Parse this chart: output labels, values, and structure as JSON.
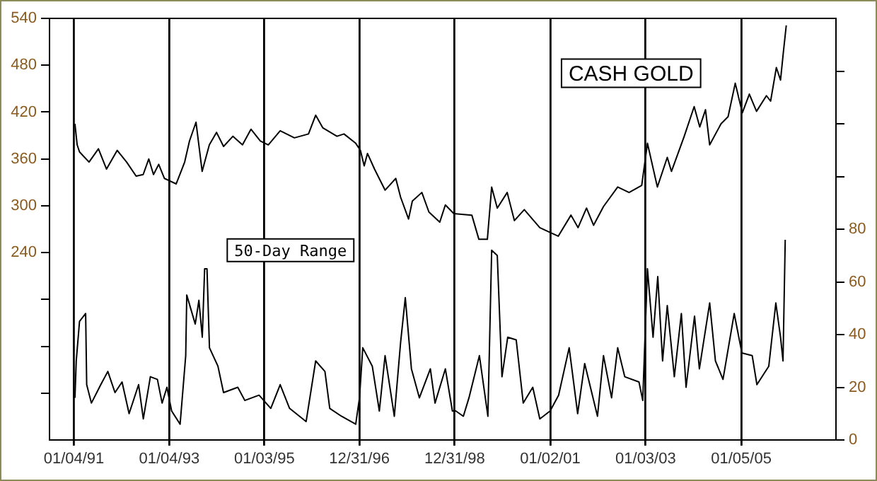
{
  "chart_data": {
    "type": "line",
    "xlim": [
      "1990-07-01",
      "2007-01-01"
    ],
    "xticks": [
      {
        "value": "1991-01-04",
        "label": "01/04/91"
      },
      {
        "value": "1993-01-04",
        "label": "01/04/93"
      },
      {
        "value": "1995-01-03",
        "label": "01/03/95"
      },
      {
        "value": "1996-12-31",
        "label": "12/31/96"
      },
      {
        "value": "1998-12-31",
        "label": "12/31/98"
      },
      {
        "value": "2001-01-02",
        "label": "01/02/01"
      },
      {
        "value": "2003-01-03",
        "label": "01/03/03"
      },
      {
        "value": "2005-01-05",
        "label": "01/05/05"
      }
    ],
    "ylim": [
      0,
      540
    ],
    "yticks": [
      {
        "value": 60,
        "label": null
      },
      {
        "value": 120,
        "label": null
      },
      {
        "value": 180,
        "label": null
      },
      240,
      300,
      360,
      420,
      480,
      540
    ],
    "y2lim": [
      0,
      160
    ],
    "y2ticks": [
      0,
      20,
      40,
      60,
      80,
      {
        "value": 100,
        "label": null
      },
      {
        "value": 120,
        "label": null
      },
      {
        "value": 140,
        "label": null
      }
    ],
    "grid": "x",
    "legend": false,
    "marker": "none",
    "line_style": "solid",
    "series": [
      {
        "name": "CASH GOLD",
        "color": "#000000",
        "x": [
          "1991-01-12",
          "1991-01-29",
          "1991-02-16",
          "1991-04-30",
          "1991-07-11",
          "1991-09-11",
          "1991-12-02",
          "1992-02-12",
          "1992-04-25",
          "1992-06-18",
          "1992-07-31",
          "1992-09-05",
          "1992-10-15",
          "1992-11-28",
          "1993-02-26",
          "1993-05-02",
          "1993-06-08",
          "1993-07-28",
          "1993-09-13",
          "1993-11-07",
          "1994-01-01",
          "1994-02-24",
          "1994-05-07",
          "1994-07-19",
          "1994-09-22",
          "1994-12-03",
          "1995-02-02",
          "1995-05-04",
          "1995-08-21",
          "1995-12-07",
          "1996-01-31",
          "1996-03-25",
          "1996-07-12",
          "1996-09-04",
          "1996-12-03",
          "1997-01-08",
          "1997-02-06",
          "1997-03-03",
          "1997-04-26",
          "1997-07-16",
          "1997-10-06",
          "1997-11-12",
          "1998-01-12",
          "1998-02-10",
          "1998-04-24",
          "1998-06-17",
          "1998-09-08",
          "1998-10-21",
          "1998-12-25",
          "1999-05-12",
          "1999-07-05",
          "1999-09-08",
          "1999-10-11",
          "1999-11-23",
          "2000-02-07",
          "2000-04-02",
          "2000-06-17",
          "2000-10-14",
          "2000-12-29",
          "2001-03-04",
          "2001-06-10",
          "2001-08-03",
          "2001-10-07",
          "2001-11-30",
          "2002-02-14",
          "2002-06-03",
          "2002-08-29",
          "2002-12-04",
          "2003-01-17",
          "2003-04-03",
          "2003-06-18",
          "2003-07-20",
          "2003-10-26",
          "2004-01-10",
          "2004-02-22",
          "2004-04-06",
          "2004-05-08",
          "2004-08-03",
          "2004-09-26",
          "2004-11-20",
          "2005-01-13",
          "2005-03-08",
          "2005-05-02",
          "2005-07-17",
          "2005-08-18",
          "2005-10-01",
          "2005-11-02",
          "2005-11-24",
          "2005-12-16"
        ],
        "values": [
          405,
          378,
          369,
          356,
          373,
          347,
          371,
          356,
          338,
          340,
          360,
          340,
          353,
          335,
          328,
          356,
          383,
          407,
          344,
          378,
          394,
          376,
          389,
          378,
          398,
          383,
          378,
          396,
          387,
          392,
          416,
          400,
          389,
          392,
          380,
          371,
          351,
          367,
          347,
          320,
          335,
          311,
          283,
          306,
          317,
          292,
          279,
          301,
          290,
          288,
          257,
          257,
          324,
          297,
          317,
          281,
          295,
          272,
          266,
          261,
          288,
          272,
          297,
          275,
          299,
          324,
          317,
          326,
          380,
          324,
          362,
          344,
          389,
          427,
          401,
          423,
          378,
          405,
          414,
          457,
          419,
          443,
          421,
          441,
          434,
          477,
          461,
          497,
          531
        ]
      },
      {
        "name": "50-Day Range",
        "color": "#000000",
        "axis": "y2",
        "x": [
          "1991-01-12",
          "1991-01-22",
          "1991-02-16",
          "1991-04-04",
          "1991-04-12",
          "1991-05-18",
          "1991-07-29",
          "1991-09-21",
          "1991-11-15",
          "1992-01-08",
          "1992-03-02",
          "1992-05-14",
          "1992-06-19",
          "1992-08-12",
          "1992-10-05",
          "1992-11-10",
          "1992-12-17",
          "1993-01-22",
          "1993-03-28",
          "1993-05-10",
          "1993-05-18",
          "1993-07-22",
          "1993-08-19",
          "1993-09-14",
          "1993-10-02",
          "1993-10-20",
          "1993-11-08",
          "1994-01-12",
          "1994-02-24",
          "1994-06-13",
          "1994-08-06",
          "1994-11-23",
          "1995-02-21",
          "1995-05-04",
          "1995-07-15",
          "1995-11-19",
          "1996-01-31",
          "1996-04-11",
          "1996-05-18",
          "1996-08-16",
          "1996-12-03",
          "1997-01-01",
          "1997-01-26",
          "1997-04-09",
          "1997-06-02",
          "1997-07-16",
          "1997-09-25",
          "1997-11-12",
          "1997-12-18",
          "1998-02-03",
          "1998-04-05",
          "1998-06-28",
          "1998-08-03",
          "1998-10-21",
          "1998-12-14",
          "1999-01-09",
          "1999-03-08",
          "1999-04-20",
          "1999-07-09",
          "1999-09-12",
          "1999-10-11",
          "1999-11-23",
          "1999-12-29",
          "2000-02-11",
          "2000-04-16",
          "2000-06-09",
          "2000-08-21",
          "2000-10-14",
          "2001-01-01",
          "2001-03-07",
          "2001-05-27",
          "2001-07-31",
          "2001-09-23",
          "2001-12-30",
          "2002-02-14",
          "2002-04-17",
          "2002-06-03",
          "2002-07-27",
          "2002-11-13",
          "2002-12-12",
          "2003-01-17",
          "2003-03-01",
          "2003-04-06",
          "2003-05-13",
          "2003-06-18",
          "2003-08-11",
          "2003-10-04",
          "2003-11-09",
          "2004-01-13",
          "2004-02-19",
          "2004-05-08",
          "2004-06-21",
          "2004-08-18",
          "2004-11-12",
          "2005-01-10",
          "2005-03-30",
          "2005-05-05",
          "2005-08-04",
          "2005-09-27",
          "2005-11-02",
          "2005-11-21",
          "2005-12-08"
        ],
        "values": [
          16,
          30,
          45,
          48,
          21,
          14,
          21,
          26,
          18,
          22,
          10,
          21,
          8,
          24,
          23,
          14,
          20,
          11,
          6,
          32,
          55,
          44,
          53,
          39,
          65,
          65,
          35,
          28,
          18,
          20,
          15,
          17,
          12,
          21,
          12,
          7,
          30,
          26,
          12,
          9,
          6,
          16,
          35,
          28,
          11,
          32,
          9,
          37,
          54,
          27,
          16,
          27,
          14,
          27,
          11,
          11,
          9,
          16,
          32,
          9,
          72,
          70,
          24,
          39,
          38,
          14,
          20,
          8,
          11,
          17,
          35,
          10,
          29,
          9,
          32,
          16,
          35,
          24,
          22,
          15,
          65,
          39,
          62,
          30,
          51,
          24,
          48,
          20,
          47,
          27,
          52,
          30,
          23,
          48,
          33,
          32,
          21,
          28,
          52,
          39,
          30,
          76
        ]
      }
    ]
  }
}
